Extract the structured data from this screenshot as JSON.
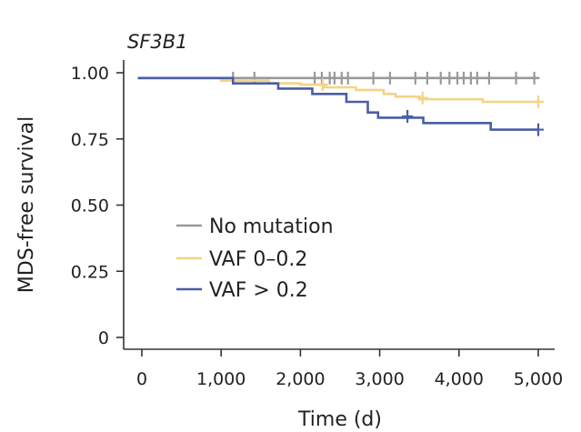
{
  "chart_data": {
    "type": "line",
    "subtype": "kaplan-meier",
    "title": "SF3B1",
    "xlabel": "Time (d)",
    "ylabel": "MDS-free survival",
    "xlim": [
      -200,
      5050
    ],
    "ylim": [
      -0.04,
      1.04
    ],
    "x_ticks": [
      0,
      1000,
      2000,
      3000,
      4000,
      5000
    ],
    "x_tick_labels": [
      "0",
      "1,000",
      "2,000",
      "3,000",
      "4,000",
      "5,000"
    ],
    "y_ticks": [
      0,
      0.25,
      0.5,
      0.75,
      1.0
    ],
    "y_tick_labels": [
      "0",
      "0.25",
      "0.50",
      "0.75",
      "1.00"
    ],
    "legend_position": "lower-left",
    "series": [
      {
        "name": "No mutation",
        "color": "#999999",
        "steps": [
          [
            -50,
            0.98
          ],
          [
            5000,
            0.98
          ]
        ],
        "censored": [
          [
            1150,
            0.98
          ],
          [
            1420,
            0.98
          ],
          [
            2180,
            0.98
          ],
          [
            2270,
            0.98
          ],
          [
            2370,
            0.98
          ],
          [
            2430,
            0.98
          ],
          [
            2520,
            0.98
          ],
          [
            2600,
            0.98
          ],
          [
            2920,
            0.98
          ],
          [
            3130,
            0.98
          ],
          [
            3450,
            0.98
          ],
          [
            3600,
            0.98
          ],
          [
            3770,
            0.98
          ],
          [
            3880,
            0.98
          ],
          [
            3980,
            0.98
          ],
          [
            4060,
            0.98
          ],
          [
            4150,
            0.98
          ],
          [
            4230,
            0.98
          ],
          [
            4380,
            0.98
          ],
          [
            4720,
            0.98
          ],
          [
            4950,
            0.98
          ]
        ]
      },
      {
        "name": "VAF 0–0.2",
        "color": "#f2d486",
        "steps": [
          [
            -50,
            0.98
          ],
          [
            1000,
            0.97
          ],
          [
            1600,
            0.96
          ],
          [
            2000,
            0.955
          ],
          [
            2300,
            0.945
          ],
          [
            2700,
            0.935
          ],
          [
            3050,
            0.92
          ],
          [
            3200,
            0.91
          ],
          [
            3500,
            0.9
          ],
          [
            4300,
            0.89
          ],
          [
            5000,
            0.89
          ]
        ],
        "censored": [
          [
            2280,
            0.955
          ],
          [
            3540,
            0.905
          ],
          [
            5000,
            0.89
          ]
        ]
      },
      {
        "name": "VAF > 0.2",
        "color": "#4a5ea3",
        "steps": [
          [
            -50,
            0.98
          ],
          [
            1150,
            0.96
          ],
          [
            1720,
            0.94
          ],
          [
            2150,
            0.92
          ],
          [
            2580,
            0.89
          ],
          [
            2850,
            0.85
          ],
          [
            2980,
            0.83
          ],
          [
            3550,
            0.81
          ],
          [
            4400,
            0.785
          ],
          [
            5000,
            0.785
          ]
        ],
        "censored": [
          [
            3350,
            0.835
          ],
          [
            5000,
            0.785
          ]
        ]
      }
    ]
  }
}
